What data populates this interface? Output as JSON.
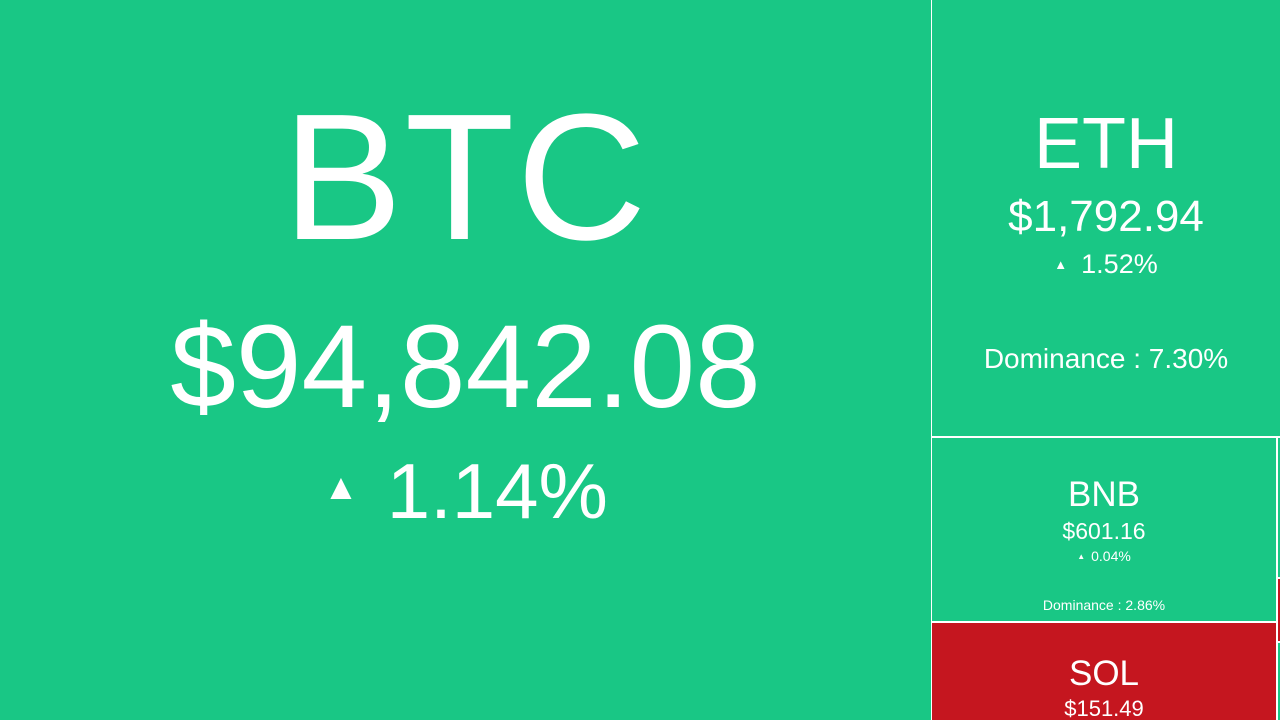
{
  "coins": {
    "btc": {
      "symbol": "BTC",
      "price": "$94,842.08",
      "change": "1.14%",
      "direction": "up"
    },
    "eth": {
      "symbol": "ETH",
      "price": "$1,792.94",
      "change": "1.52%",
      "direction": "up",
      "dominance": "Dominance : 7.30%"
    },
    "bnb": {
      "symbol": "BNB",
      "price": "$601.16",
      "change": "0.04%",
      "direction": "up",
      "dominance": "Dominance : 2.86%"
    },
    "sol": {
      "symbol": "SOL",
      "price": "$151.49",
      "direction": "down"
    }
  },
  "colors": {
    "up": "#19c785",
    "down": "#c5161f",
    "text": "#ffffff"
  },
  "icons": {
    "up_arrow": "up-triangle-icon"
  }
}
